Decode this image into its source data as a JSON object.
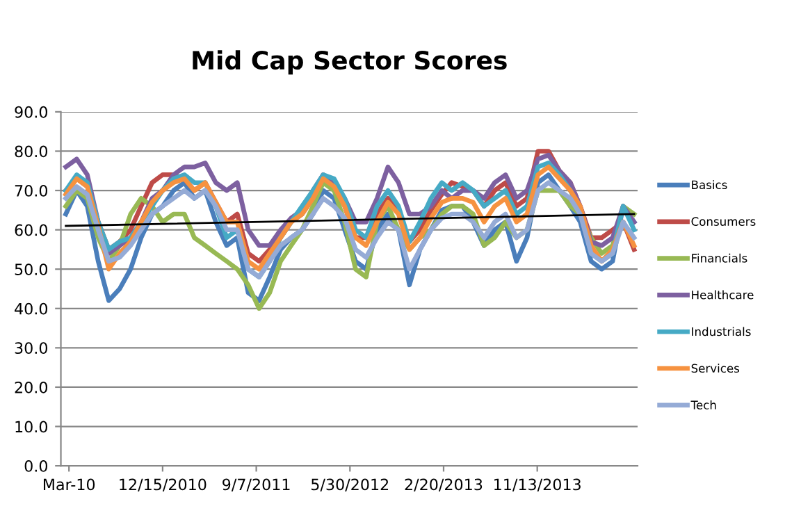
{
  "chart_data": {
    "type": "line",
    "title": "Mid Cap Sector Scores",
    "x": [
      "2010-03-15",
      "2010-04-15",
      "2010-05-15",
      "2010-06-15",
      "2010-07-15",
      "2010-08-15",
      "2010-09-15",
      "2010-10-15",
      "2010-11-15",
      "2010-12-15",
      "2011-01-15",
      "2011-02-15",
      "2011-03-15",
      "2011-04-15",
      "2011-05-15",
      "2011-06-15",
      "2011-07-15",
      "2011-08-15",
      "2011-09-15",
      "2011-10-15",
      "2011-11-15",
      "2011-12-15",
      "2012-01-15",
      "2012-02-15",
      "2012-03-15",
      "2012-04-15",
      "2012-05-15",
      "2012-06-15",
      "2012-07-15",
      "2012-08-15",
      "2012-09-15",
      "2012-10-15",
      "2012-11-15",
      "2012-12-15",
      "2013-01-15",
      "2013-02-15",
      "2013-03-15",
      "2013-04-15",
      "2013-05-15",
      "2013-06-15",
      "2013-07-15",
      "2013-08-15",
      "2013-09-15",
      "2013-10-15",
      "2013-11-15",
      "2013-12-15",
      "2014-01-15",
      "2014-02-15",
      "2014-03-15",
      "2014-04-15",
      "2014-05-15",
      "2014-06-15",
      "2014-07-15",
      "2014-08-15"
    ],
    "series": [
      {
        "name": "Basics",
        "color": "#4a7ebb",
        "values": [
          64,
          70,
          66,
          52,
          42,
          45,
          50,
          58,
          64,
          66,
          70,
          72,
          68,
          70,
          62,
          56,
          58,
          44,
          42,
          48,
          55,
          58,
          60,
          64,
          70,
          68,
          60,
          52,
          50,
          60,
          64,
          60,
          46,
          55,
          60,
          65,
          66,
          66,
          62,
          56,
          60,
          62,
          52,
          58,
          72,
          74,
          70,
          66,
          62,
          52,
          50,
          52,
          66,
          62
        ]
      },
      {
        "name": "Consumers",
        "color": "#be4b48",
        "values": [
          70,
          73,
          71,
          62,
          55,
          57,
          60,
          66,
          72,
          74,
          74,
          73,
          70,
          72,
          67,
          62,
          64,
          54,
          52,
          55,
          58,
          62,
          64,
          68,
          74,
          72,
          66,
          58,
          58,
          64,
          68,
          65,
          57,
          60,
          65,
          69,
          72,
          71,
          70,
          66,
          70,
          72,
          66,
          68,
          80,
          80,
          75,
          72,
          66,
          58,
          58,
          60,
          62,
          55
        ]
      },
      {
        "name": "Financials",
        "color": "#98b954",
        "values": [
          66,
          70,
          68,
          58,
          52,
          56,
          64,
          68,
          66,
          62,
          64,
          64,
          58,
          56,
          54,
          52,
          50,
          46,
          40,
          44,
          52,
          56,
          60,
          66,
          72,
          70,
          62,
          50,
          48,
          62,
          66,
          60,
          55,
          58,
          60,
          64,
          66,
          66,
          64,
          56,
          58,
          62,
          58,
          60,
          70,
          70,
          70,
          66,
          64,
          58,
          54,
          56,
          66,
          64
        ]
      },
      {
        "name": "Healthcare",
        "color": "#7d60a0",
        "values": [
          76,
          78,
          74,
          62,
          54,
          56,
          58,
          62,
          68,
          70,
          74,
          76,
          76,
          77,
          72,
          70,
          72,
          60,
          56,
          56,
          60,
          63,
          65,
          70,
          74,
          72,
          68,
          62,
          62,
          68,
          76,
          72,
          64,
          64,
          66,
          70,
          68,
          70,
          70,
          68,
          72,
          74,
          68,
          70,
          78,
          79,
          75,
          72,
          66,
          57,
          56,
          58,
          66,
          62
        ]
      },
      {
        "name": "Industrials",
        "color": "#46aac5",
        "values": [
          70,
          74,
          72,
          62,
          55,
          57,
          58,
          62,
          66,
          70,
          73,
          74,
          72,
          72,
          66,
          58,
          60,
          50,
          48,
          52,
          58,
          62,
          66,
          70,
          74,
          73,
          68,
          60,
          58,
          66,
          70,
          66,
          57,
          62,
          68,
          72,
          70,
          72,
          70,
          66,
          68,
          70,
          64,
          66,
          76,
          77,
          74,
          70,
          65,
          54,
          52,
          54,
          66,
          60
        ]
      },
      {
        "name": "Services",
        "color": "#f69240",
        "values": [
          69,
          73,
          71,
          61,
          50,
          54,
          57,
          62,
          67,
          70,
          72,
          73,
          70,
          72,
          67,
          62,
          62,
          52,
          50,
          54,
          58,
          62,
          64,
          68,
          73,
          71,
          66,
          58,
          56,
          62,
          67,
          64,
          55,
          58,
          63,
          67,
          68,
          68,
          67,
          62,
          66,
          68,
          62,
          64,
          74,
          76,
          73,
          70,
          66,
          56,
          52,
          55,
          62,
          56
        ]
      },
      {
        "name": "Tech",
        "color": "#95abd6",
        "values": [
          68,
          71,
          69,
          60,
          52,
          53,
          56,
          60,
          64,
          66,
          68,
          70,
          68,
          70,
          66,
          60,
          60,
          50,
          48,
          52,
          56,
          58,
          60,
          64,
          68,
          66,
          63,
          55,
          53,
          58,
          62,
          60,
          50,
          55,
          60,
          63,
          64,
          64,
          62,
          58,
          62,
          64,
          58,
          60,
          70,
          72,
          70,
          68,
          64,
          54,
          52,
          54,
          62,
          58
        ]
      },
      {
        "type": "line",
        "color": "#000000",
        "x": [
          "2010-03-15",
          "2014-08-15"
        ],
        "values": [
          61,
          64
        ]
      }
    ],
    "xlim": [
      "2010-03-01",
      "2014-08-25"
    ],
    "xticks": [
      {
        "value": "2010-03-24",
        "label": "Mar-10"
      },
      {
        "value": "2010-12-15",
        "label": "12/15/2010"
      },
      {
        "value": "2011-09-07",
        "label": "9/7/2011"
      },
      {
        "value": "2012-05-30",
        "label": "5/30/2012"
      },
      {
        "value": "2013-02-20",
        "label": "2/20/2013"
      },
      {
        "value": "2013-11-13",
        "label": "11/13/2013"
      }
    ],
    "ylim": [
      0,
      90
    ],
    "yticks": [
      {
        "value": 0,
        "label": "0.0"
      },
      {
        "value": 10,
        "label": "10.0"
      },
      {
        "value": 20,
        "label": "20.0"
      },
      {
        "value": 30,
        "label": "30.0"
      },
      {
        "value": 40,
        "label": "40.0"
      },
      {
        "value": 50,
        "label": "50.0"
      },
      {
        "value": 60,
        "label": "60.0"
      },
      {
        "value": 70,
        "label": "70.0"
      },
      {
        "value": 80,
        "label": "80.0"
      },
      {
        "value": 90,
        "label": "90.0"
      }
    ],
    "grid": "y",
    "legend": "right",
    "marker": "none",
    "line_style": "solid"
  }
}
